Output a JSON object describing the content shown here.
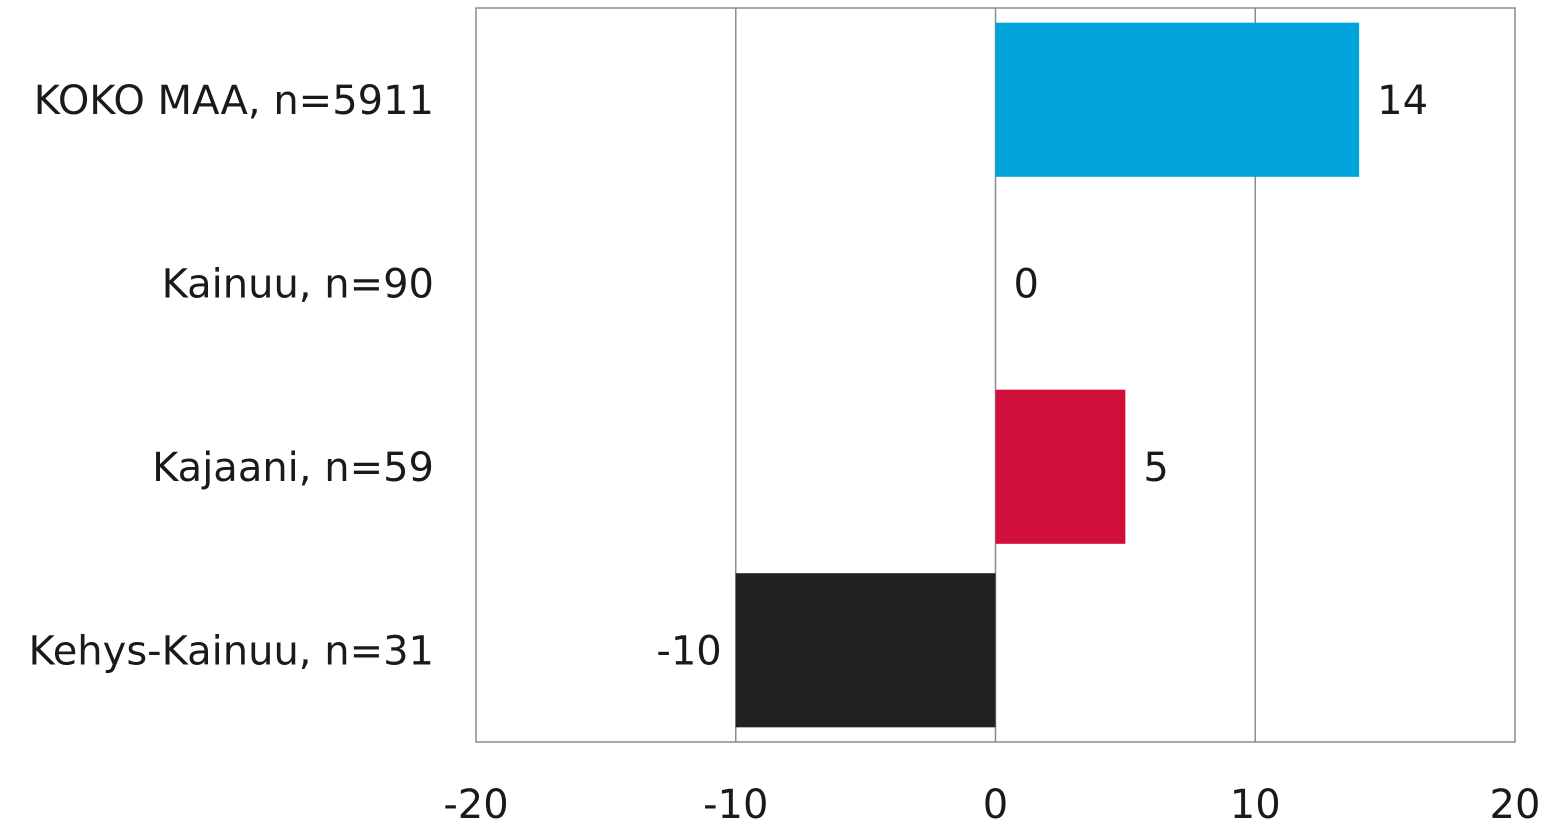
{
  "chart_data": {
    "type": "bar",
    "orientation": "horizontal",
    "title": "",
    "xlabel": "",
    "ylabel": "",
    "categories": [
      "KOKO MAA, n=5911",
      "Kainuu, n=90",
      "Kajaani, n=59",
      "Kehys-Kainuu, n=31"
    ],
    "values": [
      14,
      0,
      5,
      -10
    ],
    "value_labels": [
      "14",
      "0",
      "5",
      "-10"
    ],
    "colors": [
      "#00a3d9",
      "#00a3d9",
      "#d0103a",
      "#222222"
    ],
    "xlim": [
      -20,
      20
    ],
    "xticks": [
      -20,
      -10,
      0,
      10,
      20
    ],
    "xtick_labels": [
      "-20",
      "-10",
      "0",
      "10",
      "20"
    ],
    "grid": true,
    "legend": "none"
  }
}
